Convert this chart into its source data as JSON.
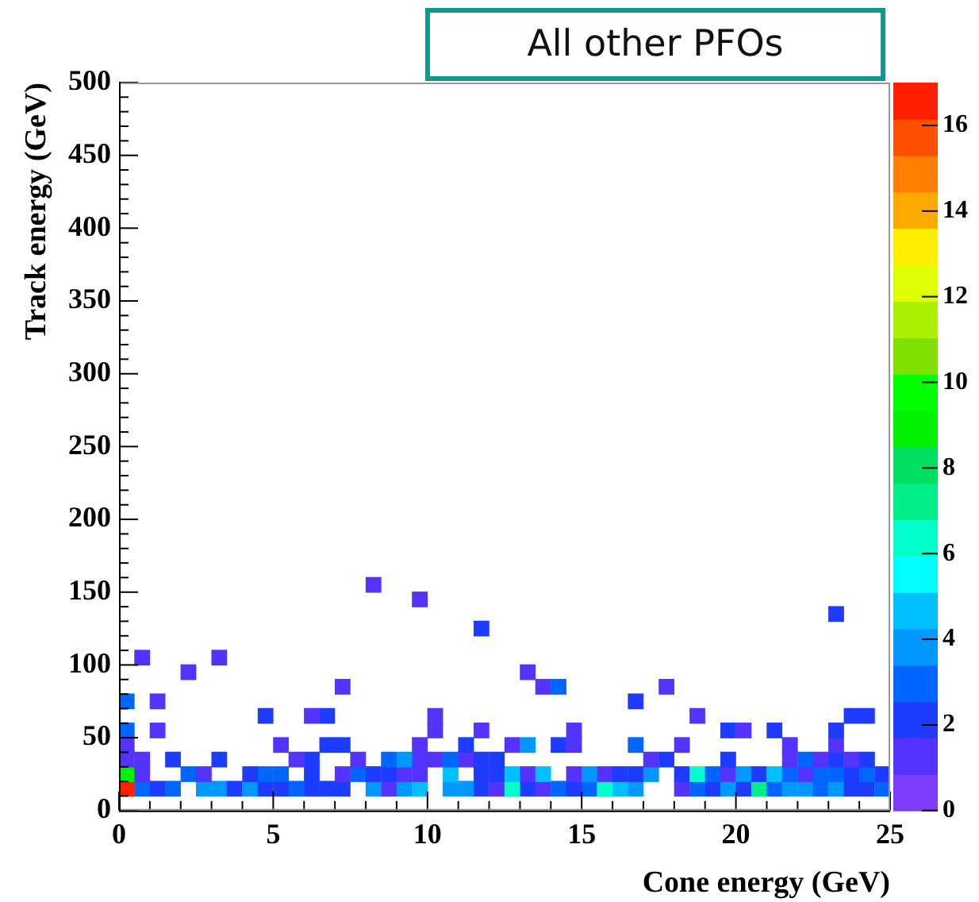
{
  "chart_data": {
    "type": "scatter",
    "title": "All other PFOs",
    "xlabel": "Cone energy (GeV)",
    "ylabel": "Track energy (GeV)",
    "marker": "square",
    "xlim": [
      0,
      25
    ],
    "ylim": [
      0,
      500
    ],
    "xticks": [
      0,
      {
        "value": 1,
        "label": null
      },
      {
        "value": 2,
        "label": null
      },
      {
        "value": 3,
        "label": null
      },
      {
        "value": 4,
        "label": null
      },
      5,
      {
        "value": 6,
        "label": null
      },
      {
        "value": 7,
        "label": null
      },
      {
        "value": 8,
        "label": null
      },
      {
        "value": 9,
        "label": null
      },
      10,
      {
        "value": 11,
        "label": null
      },
      {
        "value": 12,
        "label": null
      },
      {
        "value": 13,
        "label": null
      },
      {
        "value": 14,
        "label": null
      },
      15,
      {
        "value": 16,
        "label": null
      },
      {
        "value": 17,
        "label": null
      },
      {
        "value": 18,
        "label": null
      },
      {
        "value": 19,
        "label": null
      },
      20,
      {
        "value": 21,
        "label": null
      },
      {
        "value": 22,
        "label": null
      },
      {
        "value": 23,
        "label": null
      },
      {
        "value": 24,
        "label": null
      },
      25
    ],
    "yticks": [
      0,
      {
        "value": 10,
        "label": null
      },
      {
        "value": 20,
        "label": null
      },
      {
        "value": 30,
        "label": null
      },
      {
        "value": 40,
        "label": null
      },
      50,
      {
        "value": 60,
        "label": null
      },
      {
        "value": 70,
        "label": null
      },
      {
        "value": 80,
        "label": null
      },
      {
        "value": 90,
        "label": null
      },
      100,
      {
        "value": 110,
        "label": null
      },
      {
        "value": 120,
        "label": null
      },
      {
        "value": 130,
        "label": null
      },
      {
        "value": 140,
        "label": null
      },
      150,
      {
        "value": 160,
        "label": null
      },
      {
        "value": 170,
        "label": null
      },
      {
        "value": 180,
        "label": null
      },
      {
        "value": 190,
        "label": null
      },
      200,
      {
        "value": 210,
        "label": null
      },
      {
        "value": 220,
        "label": null
      },
      {
        "value": 230,
        "label": null
      },
      {
        "value": 240,
        "label": null
      },
      250,
      {
        "value": 260,
        "label": null
      },
      {
        "value": 270,
        "label": null
      },
      {
        "value": 280,
        "label": null
      },
      {
        "value": 290,
        "label": null
      },
      300,
      {
        "value": 310,
        "label": null
      },
      {
        "value": 320,
        "label": null
      },
      {
        "value": 330,
        "label": null
      },
      {
        "value": 340,
        "label": null
      },
      350,
      {
        "value": 360,
        "label": null
      },
      {
        "value": 370,
        "label": null
      },
      {
        "value": 380,
        "label": null
      },
      {
        "value": 390,
        "label": null
      },
      400,
      {
        "value": 410,
        "label": null
      },
      {
        "value": 420,
        "label": null
      },
      {
        "value": 430,
        "label": null
      },
      {
        "value": 440,
        "label": null
      },
      450,
      {
        "value": 460,
        "label": null
      },
      {
        "value": 470,
        "label": null
      },
      {
        "value": 480,
        "label": null
      },
      {
        "value": 490,
        "label": null
      },
      500
    ],
    "clim": [
      0,
      17
    ],
    "cticks": [
      0,
      2,
      4,
      6,
      8,
      10,
      12,
      14,
      16
    ],
    "x": [
      0.25,
      0.75,
      1.25,
      1.75,
      2.75,
      3.25,
      3.75,
      4.25,
      4.75,
      5.25,
      5.75,
      6.25,
      6.75,
      7.25,
      8.25,
      8.75,
      9.25,
      9.75,
      10.75,
      11.25,
      11.75,
      12.25,
      12.75,
      13.25,
      13.75,
      14.25,
      14.75,
      15.25,
      15.75,
      16.25,
      16.75,
      18.25,
      18.75,
      19.25,
      19.75,
      20.25,
      20.75,
      21.25,
      21.75,
      22.25,
      22.75,
      23.25,
      23.75,
      24.25,
      24.75,
      0.25,
      0.75,
      2.25,
      2.75,
      4.25,
      4.75,
      5.25,
      6.25,
      7.25,
      7.75,
      8.25,
      8.75,
      9.25,
      9.75,
      10.75,
      11.75,
      12.25,
      12.75,
      13.25,
      13.75,
      14.75,
      15.25,
      15.75,
      16.25,
      16.75,
      17.25,
      18.25,
      18.75,
      19.25,
      19.75,
      20.25,
      20.75,
      21.25,
      21.75,
      22.25,
      22.75,
      23.25,
      23.75,
      24.25,
      24.75,
      0.25,
      0.75,
      1.75,
      3.25,
      5.75,
      6.25,
      7.75,
      8.75,
      9.25,
      9.75,
      10.25,
      10.75,
      11.25,
      11.75,
      12.25,
      17.25,
      17.75,
      19.75,
      21.75,
      22.25,
      22.75,
      23.25,
      23.75,
      24.25,
      0.25,
      5.25,
      6.75,
      7.25,
      9.75,
      11.25,
      12.75,
      13.25,
      14.25,
      14.75,
      16.75,
      18.25,
      21.75,
      23.25,
      0.25,
      1.25,
      10.25,
      11.75,
      14.75,
      19.75,
      20.25,
      21.25,
      23.25,
      4.75,
      6.25,
      6.75,
      10.25,
      18.75,
      23.75,
      24.25,
      0.25,
      1.25,
      16.75,
      7.25,
      13.75,
      14.25,
      17.75,
      2.25,
      13.25,
      0.75,
      3.25,
      11.75,
      23.25,
      9.75,
      8.25
    ],
    "values": [
      15,
      15,
      15,
      15,
      15,
      15,
      15,
      15,
      15,
      15,
      15,
      15,
      15,
      15,
      15,
      15,
      15,
      15,
      15,
      15,
      15,
      15,
      15,
      15,
      15,
      15,
      15,
      15,
      15,
      15,
      15,
      15,
      15,
      15,
      15,
      15,
      15,
      15,
      15,
      15,
      15,
      15,
      15,
      15,
      15,
      25,
      25,
      25,
      25,
      25,
      25,
      25,
      25,
      25,
      25,
      25,
      25,
      25,
      25,
      25,
      25,
      25,
      25,
      25,
      25,
      25,
      25,
      25,
      25,
      25,
      25,
      25,
      25,
      25,
      25,
      25,
      25,
      25,
      25,
      25,
      25,
      25,
      25,
      25,
      25,
      35,
      35,
      35,
      35,
      35,
      35,
      35,
      35,
      35,
      35,
      35,
      35,
      35,
      35,
      35,
      35,
      35,
      35,
      35,
      35,
      35,
      35,
      35,
      35,
      45,
      45,
      45,
      45,
      45,
      45,
      45,
      45,
      45,
      45,
      45,
      45,
      45,
      45,
      55,
      55,
      55,
      55,
      55,
      55,
      55,
      55,
      55,
      65,
      65,
      65,
      65,
      65,
      65,
      65,
      75,
      75,
      75,
      85,
      85,
      85,
      85,
      95,
      95,
      105,
      105,
      125,
      135,
      145,
      155
    ],
    "cvalues": [
      17,
      3,
      2,
      3,
      4,
      4,
      2,
      4,
      2,
      2,
      3,
      2,
      2,
      2,
      4,
      1,
      4,
      5,
      4,
      4,
      2,
      1,
      6,
      2,
      1,
      3,
      2,
      3,
      6,
      5,
      4,
      1,
      3,
      2,
      4,
      2,
      7,
      3,
      4,
      4,
      3,
      4,
      2,
      2,
      3,
      9,
      1,
      3,
      1,
      2,
      3,
      3,
      2,
      1,
      3,
      2,
      2,
      1,
      1,
      5,
      2,
      2,
      5,
      1,
      5,
      1,
      4,
      1,
      2,
      2,
      4,
      2,
      6,
      3,
      1,
      4,
      2,
      5,
      3,
      1,
      3,
      3,
      2,
      3,
      2,
      1,
      1,
      2,
      2,
      1,
      2,
      1,
      3,
      4,
      1,
      1,
      3,
      1,
      2,
      2,
      1,
      2,
      2,
      1,
      3,
      1,
      2,
      1,
      2,
      1,
      1,
      2,
      2,
      1,
      2,
      1,
      4,
      2,
      1,
      3,
      1,
      1,
      1,
      3,
      1,
      1,
      1,
      1,
      2,
      1,
      2,
      2,
      2,
      1,
      2,
      1,
      1,
      2,
      2,
      3,
      1,
      2,
      1,
      1,
      3,
      1,
      1,
      1,
      1,
      1,
      2,
      2,
      1,
      1
    ]
  }
}
